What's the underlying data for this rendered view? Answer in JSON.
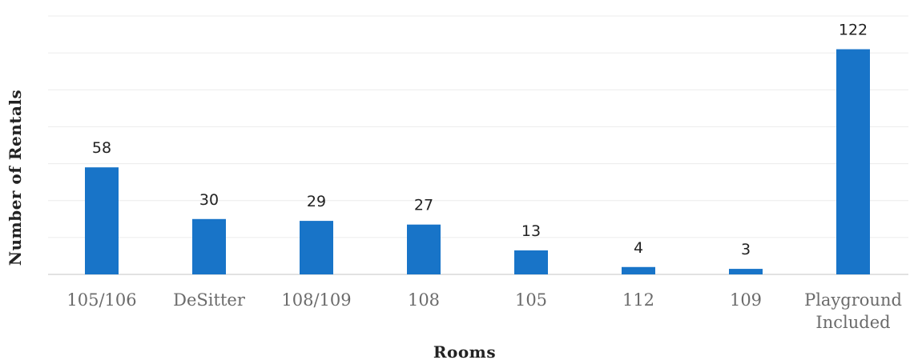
{
  "chart_data": {
    "type": "bar",
    "categories": [
      "105/106",
      "DeSitter",
      "108/109",
      "108",
      "105",
      "112",
      "109",
      "Playground Included"
    ],
    "values": [
      58,
      30,
      29,
      27,
      13,
      4,
      3,
      122
    ],
    "data_labels": [
      "58",
      "30",
      "29",
      "27",
      "13",
      "4",
      "3",
      "122"
    ],
    "xlabel": "Rooms",
    "ylabel": "Number of Rentals",
    "ylim": [
      0,
      140
    ],
    "grid": true,
    "legend": "none",
    "bar_color": "#1874c8"
  }
}
